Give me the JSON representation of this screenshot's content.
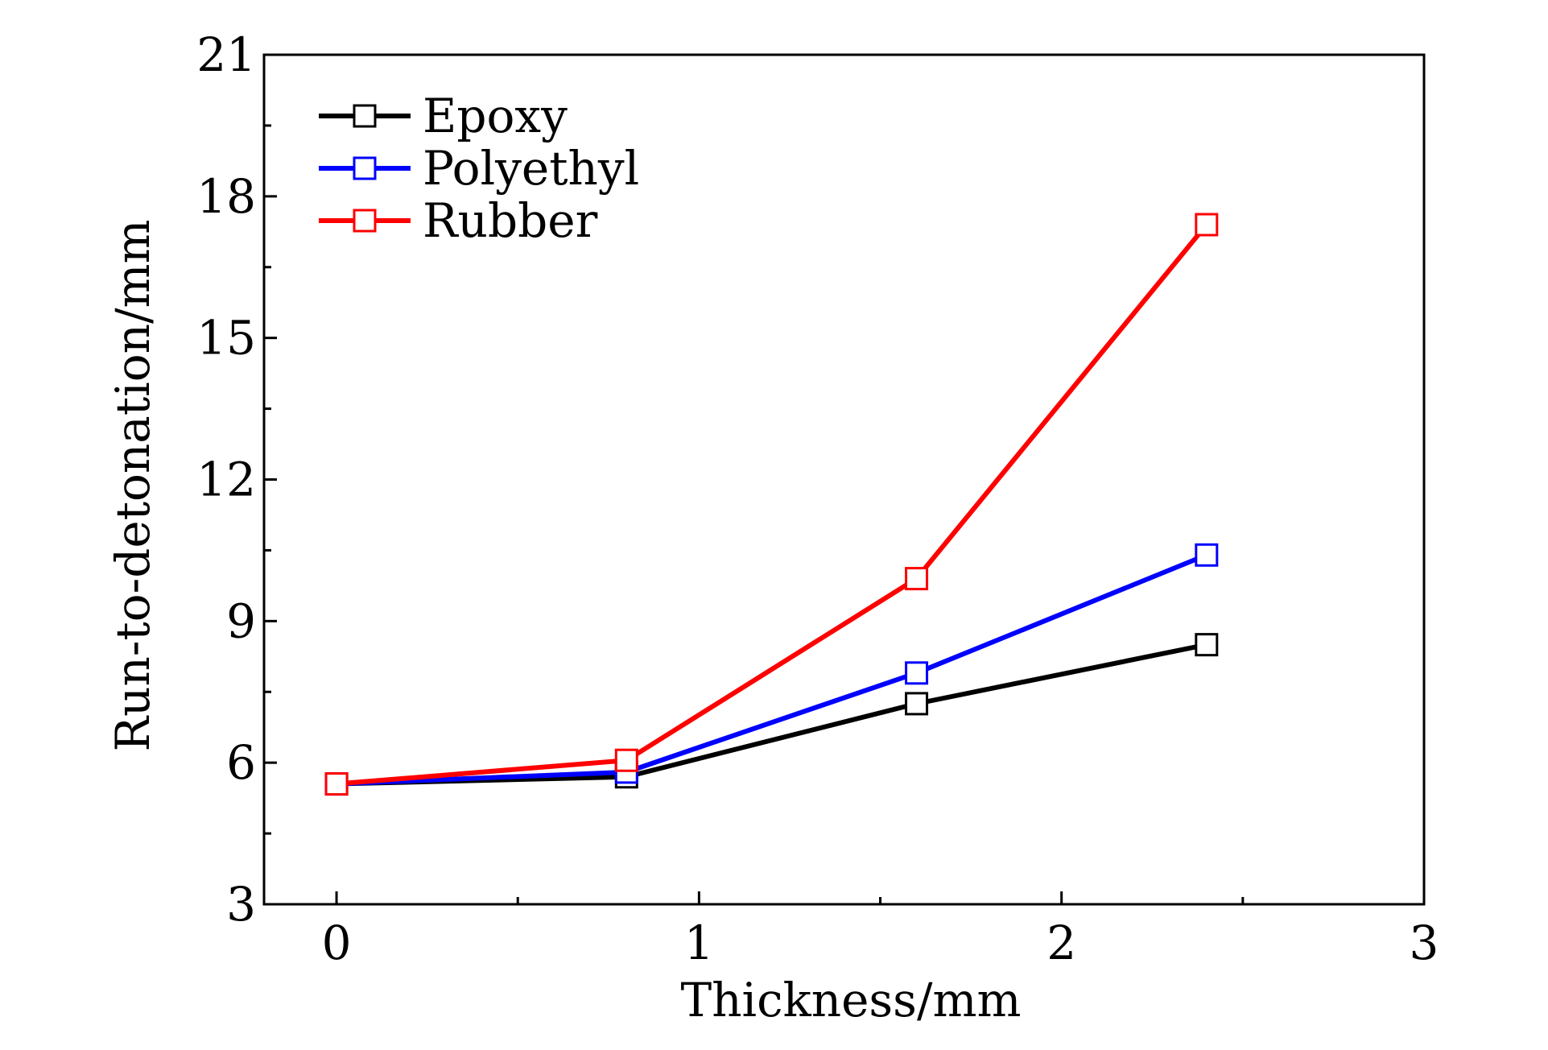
{
  "chart_data": {
    "type": "line",
    "title": "",
    "xlabel": "Thickness/mm",
    "ylabel": "Run-to-detonation/mm",
    "xlim": [
      -0.2,
      3
    ],
    "ylim": [
      3,
      21
    ],
    "x_ticks": [
      0,
      1,
      2,
      3
    ],
    "x_tick_labels": [
      "0",
      "1",
      "2",
      "3"
    ],
    "x_minor_ticks": [
      0.5,
      1.5,
      2.5
    ],
    "y_ticks": [
      3,
      6,
      9,
      12,
      15,
      18,
      21
    ],
    "y_tick_labels": [
      "3",
      "6",
      "9",
      "12",
      "15",
      "18",
      "21"
    ],
    "y_minor_ticks": [
      4.5,
      7.5,
      10.5,
      13.5,
      16.5,
      19.5
    ],
    "grid": false,
    "legend_position": "top-left",
    "marker": "open-square",
    "x": [
      0,
      0.8,
      1.6,
      2.4
    ],
    "series": [
      {
        "name": "Epoxy",
        "color": "#000000",
        "values": [
          5.55,
          5.7,
          7.25,
          8.5
        ]
      },
      {
        "name": "Polyethyl",
        "color": "#0000ff",
        "values": [
          5.55,
          5.8,
          7.9,
          10.4
        ]
      },
      {
        "name": "Rubber",
        "color": "#ff0000",
        "values": [
          5.55,
          6.05,
          9.9,
          17.4
        ]
      }
    ]
  }
}
